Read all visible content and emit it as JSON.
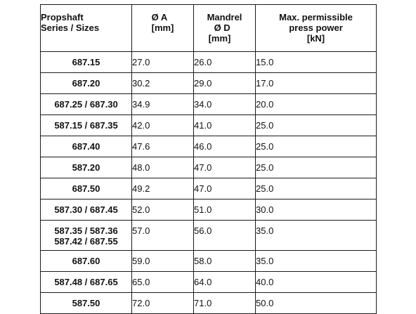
{
  "table": {
    "headers": {
      "series": [
        "Propshaft",
        "Series / Sizes"
      ],
      "diameter_a": [
        "Ø A",
        "[mm]"
      ],
      "mandrel_d": [
        "Mandrel",
        "Ø D",
        "[mm]"
      ],
      "press_power": [
        "Max. permissible",
        "press power",
        "[kN]"
      ]
    },
    "rows": [
      {
        "series": [
          "687.15"
        ],
        "a": "27.0",
        "d": "26.0",
        "power": "15.0"
      },
      {
        "series": [
          "687.20"
        ],
        "a": "30.2",
        "d": "29.0",
        "power": "17.0"
      },
      {
        "series": [
          "687.25 / 687.30"
        ],
        "a": "34.9",
        "d": "34.0",
        "power": "20.0"
      },
      {
        "series": [
          "587.15 / 687.35"
        ],
        "a": "42.0",
        "d": "41.0",
        "power": "25.0"
      },
      {
        "series": [
          "687.40"
        ],
        "a": "47.6",
        "d": "46.0",
        "power": "25.0"
      },
      {
        "series": [
          "587.20"
        ],
        "a": "48.0",
        "d": "47.0",
        "power": "25.0"
      },
      {
        "series": [
          "687.50"
        ],
        "a": "49.2",
        "d": "47.0",
        "power": "25.0"
      },
      {
        "series": [
          "587.30 / 687.45"
        ],
        "a": "52.0",
        "d": "51.0",
        "power": "30.0"
      },
      {
        "series": [
          "587.35 / 587.36",
          "587.42 / 687.55"
        ],
        "a": "57.0",
        "d": "56.0",
        "power": "35.0"
      },
      {
        "series": [
          "687.60"
        ],
        "a": "59.0",
        "d": "58.0",
        "power": "35.0"
      },
      {
        "series": [
          "587.48 / 687.65"
        ],
        "a": "65.0",
        "d": "64.0",
        "power": "40.0"
      },
      {
        "series": [
          "587.50"
        ],
        "a": "72.0",
        "d": "71.0",
        "power": "50.0"
      }
    ]
  }
}
